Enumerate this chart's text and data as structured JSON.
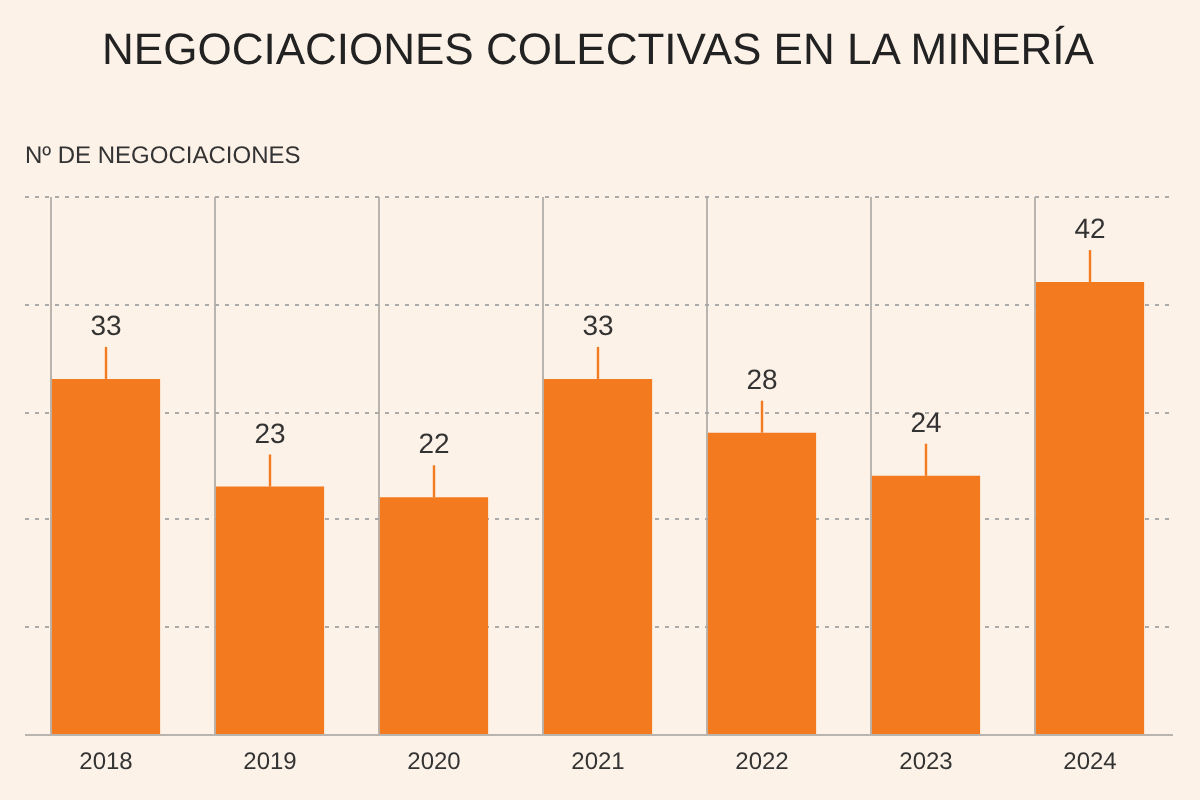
{
  "chart_data": {
    "type": "bar",
    "title": "NEGOCIACIONES COLECTIVAS EN LA MINERÍA",
    "ylabel": "Nº DE NEGOCIACIONES",
    "categories": [
      "2018",
      "2019",
      "2020",
      "2021",
      "2022",
      "2023",
      "2024"
    ],
    "values": [
      33,
      23,
      22,
      33,
      28,
      24,
      42
    ],
    "color": "#f47a20",
    "ylim": [
      0,
      50
    ],
    "yticks": [
      {
        "value": 0,
        "label": null
      },
      {
        "value": 10,
        "label": null
      },
      {
        "value": 20,
        "label": null
      },
      {
        "value": 30,
        "label": null
      },
      {
        "value": 40,
        "label": null
      },
      {
        "value": 50,
        "label": null
      }
    ],
    "tick_labels": "x",
    "grid": true,
    "data_labels": true
  }
}
